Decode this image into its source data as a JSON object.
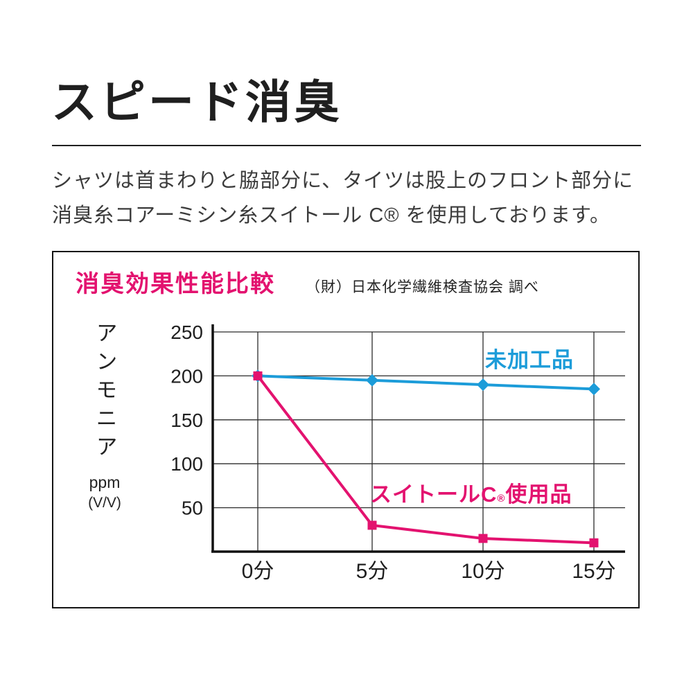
{
  "page": {
    "title": "スピード消臭",
    "description_line1": "シャツは首まわりと脇部分に、タイツは股上のフロント部分に",
    "description_line2": "消臭糸コアーミシン糸スイトール C® を使用しております。"
  },
  "chart": {
    "title": "消臭効果性能比較",
    "source": "（財）日本化学繊維検査協会 調べ",
    "y_axis_label": "アンモニア",
    "y_axis_unit_1": "ppm",
    "y_axis_unit_2": "(V/V)",
    "accent_color": "#e3126f",
    "treated_label_prefix": "スイトールC",
    "treated_label_reg": "®",
    "treated_label_suffix": "使用品"
  },
  "chart_data": {
    "type": "line",
    "title": "消臭効果性能比較",
    "categories": [
      "0分",
      "5分",
      "10分",
      "15分"
    ],
    "series": [
      {
        "name": "未加工品",
        "values": [
          200,
          195,
          190,
          185
        ],
        "color": "#1c9cd9",
        "marker": "diamond"
      },
      {
        "name": "スイトールC®使用品",
        "values": [
          200,
          30,
          15,
          10
        ],
        "color": "#e3126f",
        "marker": "square"
      }
    ],
    "xlabel": "",
    "ylabel": "アンモニア ppm (V/V)",
    "ylim": [
      0,
      250
    ],
    "yticks": [
      50,
      100,
      150,
      200,
      250
    ],
    "grid": true,
    "legend_position": "inline-labels"
  }
}
